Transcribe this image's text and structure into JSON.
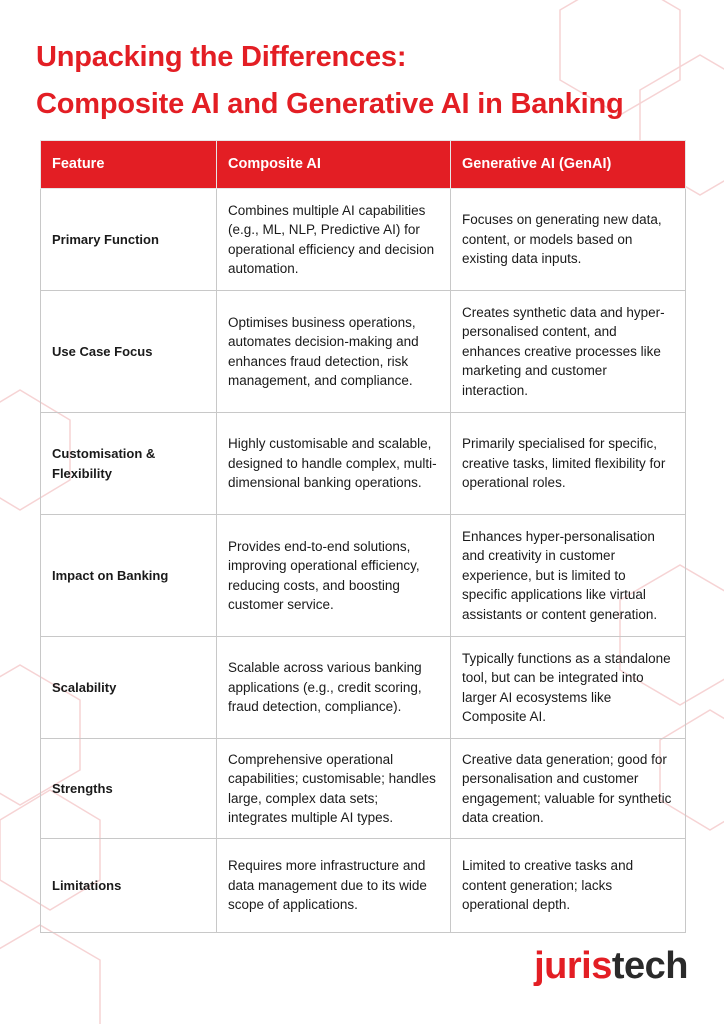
{
  "header": {
    "title": [
      "Unpacking the Differences:",
      "Composite AI and Generative AI in Banking"
    ]
  },
  "table": {
    "columns": [
      "Feature",
      "Composite AI",
      "Generative AI (GenAI)"
    ],
    "rows": [
      [
        "Primary Function",
        "Combines multiple AI capabilities (e.g., ML, NLP, Predictive AI) for operational efficiency and decision automation.",
        "Focuses on generating new data, content, or models based on existing data inputs."
      ],
      [
        "Use Case Focus",
        "Optimises business operations, automates decision-making and enhances fraud detection, risk management, and compliance.",
        "Creates synthetic data and hyper-personalised content, and enhances creative processes like marketing and customer interaction."
      ],
      [
        "Customisation & Flexibility",
        "Highly customisable and scalable, designed to handle complex, multi-dimensional banking operations.",
        "Primarily specialised for specific, creative tasks, limited flexibility for operational roles."
      ],
      [
        "Impact on Banking",
        "Provides end-to-end solutions, improving operational efficiency, reducing costs, and boosting customer service.",
        "Enhances hyper-personalisation and creativity in customer experience, but is limited to specific applications like virtual assistants or content generation."
      ],
      [
        "Scalability",
        "Scalable across various banking applications (e.g., credit scoring, fraud detection, compliance).",
        "Typically functions as a standalone tool, but can be integrated into larger AI ecosystems like Composite AI."
      ],
      [
        "Strengths",
        "Comprehensive operational capabilities; customisable; handles large, complex data sets; integrates multiple AI types.",
        "Creative data generation; good for personalisation and customer engagement; valuable for synthetic data creation."
      ],
      [
        "Limitations",
        "Requires more infrastructure and data management due to its wide scope of applications.",
        "Limited to creative tasks and content generation; lacks operational depth."
      ]
    ]
  },
  "logo": [
    "juris",
    "tech"
  ]
}
